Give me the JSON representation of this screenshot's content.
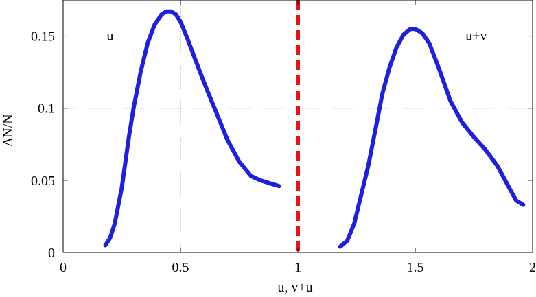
{
  "chart_data": {
    "type": "line",
    "title": "",
    "xlabel": "u, v+u",
    "ylabel": "ΔN/N",
    "xlim": [
      0,
      2
    ],
    "ylim": [
      0,
      0.175
    ],
    "grid": "partial-dotted",
    "x_ticks": [
      0,
      0.5,
      1,
      1.5,
      2
    ],
    "x_tick_labels": [
      "0",
      "0.5",
      "1",
      "1.5",
      "2"
    ],
    "y_ticks": [
      0,
      0.05,
      0.1,
      0.15
    ],
    "y_tick_labels": [
      "0",
      "0.05",
      "0.1",
      "0.15"
    ],
    "grid_lines": {
      "vertical_x": [
        0.5
      ],
      "horizontal_y": [
        0.1
      ],
      "color": "#888888"
    },
    "series": [
      {
        "name": "u",
        "color": "#1f1fe0",
        "x": [
          0.18,
          0.2,
          0.22,
          0.25,
          0.28,
          0.3,
          0.33,
          0.36,
          0.39,
          0.42,
          0.44,
          0.46,
          0.48,
          0.5,
          0.53,
          0.56,
          0.6,
          0.65,
          0.7,
          0.75,
          0.8,
          0.84,
          0.88,
          0.92
        ],
        "y": [
          0.005,
          0.01,
          0.02,
          0.045,
          0.08,
          0.1,
          0.125,
          0.145,
          0.158,
          0.165,
          0.167,
          0.167,
          0.165,
          0.16,
          0.148,
          0.135,
          0.118,
          0.098,
          0.078,
          0.063,
          0.053,
          0.05,
          0.048,
          0.046
        ]
      },
      {
        "name": "u+v",
        "color": "#1f1fe0",
        "x": [
          1.18,
          1.21,
          1.24,
          1.27,
          1.3,
          1.33,
          1.36,
          1.39,
          1.42,
          1.45,
          1.48,
          1.5,
          1.53,
          1.56,
          1.6,
          1.65,
          1.7,
          1.75,
          1.8,
          1.85,
          1.9,
          1.93,
          1.96
        ],
        "y": [
          0.004,
          0.008,
          0.02,
          0.04,
          0.06,
          0.085,
          0.11,
          0.128,
          0.142,
          0.151,
          0.155,
          0.155,
          0.152,
          0.145,
          0.128,
          0.105,
          0.09,
          0.08,
          0.071,
          0.06,
          0.045,
          0.036,
          0.033
        ]
      }
    ],
    "annotations": [
      {
        "text": "u",
        "x": 0.2,
        "y": 0.15
      },
      {
        "text": "u+v",
        "x": 1.76,
        "y": 0.15
      }
    ],
    "reference_lines": [
      {
        "axis": "x",
        "value": 1,
        "color": "#ee1111",
        "style": "dashed"
      }
    ]
  }
}
